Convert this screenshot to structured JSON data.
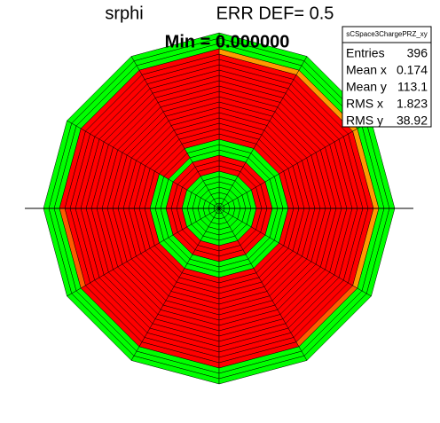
{
  "chart_data": {
    "type": "polar_heatmap",
    "title": "srphi",
    "subtitle": "ERR DEF= 0.5",
    "annotation": "Min = 0.000000",
    "palette": [
      "#00ff00",
      "#ff0000",
      "#ff9900",
      "#ff5a00"
    ],
    "values": [
      [
        0,
        0,
        0,
        0,
        0,
        0,
        0,
        1,
        1,
        1,
        0,
        0,
        0,
        1,
        1,
        1,
        1,
        1,
        1,
        1,
        1,
        1,
        1,
        1,
        1,
        1,
        1,
        1,
        1,
        2,
        0,
        0,
        0
      ],
      [
        0,
        0,
        0,
        0,
        0,
        0,
        0,
        1,
        1,
        1,
        0,
        0,
        0,
        1,
        1,
        1,
        1,
        1,
        1,
        1,
        1,
        1,
        1,
        1,
        1,
        1,
        1,
        1,
        1,
        2,
        0,
        0,
        0
      ],
      [
        0,
        0,
        0,
        0,
        0,
        0,
        0,
        1,
        1,
        1,
        0,
        0,
        0,
        1,
        1,
        1,
        1,
        1,
        1,
        1,
        1,
        1,
        1,
        1,
        1,
        1,
        1,
        1,
        1,
        2,
        0,
        0,
        0
      ],
      [
        0,
        0,
        0,
        0,
        0,
        0,
        0,
        1,
        1,
        1,
        0,
        0,
        0,
        1,
        1,
        1,
        1,
        1,
        1,
        1,
        1,
        1,
        1,
        1,
        1,
        1,
        1,
        1,
        1,
        1,
        0,
        0,
        0
      ],
      [
        0,
        0,
        0,
        0,
        0,
        0,
        0,
        1,
        1,
        1,
        0,
        1,
        1,
        1,
        1,
        1,
        1,
        1,
        1,
        1,
        1,
        1,
        1,
        1,
        1,
        1,
        1,
        1,
        1,
        1,
        0,
        0,
        0
      ],
      [
        0,
        0,
        0,
        0,
        0,
        0,
        0,
        1,
        1,
        1,
        0,
        0,
        0,
        1,
        1,
        1,
        1,
        1,
        1,
        1,
        1,
        1,
        1,
        1,
        1,
        1,
        1,
        1,
        1,
        1,
        0,
        0,
        0
      ],
      [
        0,
        0,
        0,
        0,
        0,
        0,
        0,
        1,
        1,
        1,
        0,
        0,
        0,
        1,
        1,
        1,
        1,
        1,
        1,
        1,
        1,
        1,
        1,
        1,
        1,
        1,
        1,
        1,
        1,
        3,
        0,
        0,
        0
      ],
      [
        0,
        0,
        0,
        0,
        0,
        0,
        0,
        1,
        1,
        1,
        0,
        0,
        0,
        1,
        1,
        1,
        1,
        1,
        1,
        1,
        1,
        1,
        1,
        1,
        1,
        1,
        1,
        1,
        1,
        1,
        0,
        0,
        0
      ],
      [
        0,
        0,
        0,
        0,
        0,
        0,
        0,
        1,
        1,
        1,
        0,
        0,
        0,
        1,
        1,
        1,
        1,
        1,
        1,
        1,
        1,
        1,
        1,
        1,
        1,
        1,
        1,
        1,
        1,
        1,
        0,
        0,
        0
      ],
      [
        0,
        0,
        0,
        0,
        0,
        0,
        0,
        1,
        1,
        1,
        0,
        0,
        0,
        1,
        1,
        1,
        1,
        1,
        1,
        1,
        1,
        1,
        1,
        1,
        1,
        1,
        1,
        1,
        1,
        1,
        0,
        0,
        0
      ],
      [
        0,
        0,
        0,
        0,
        0,
        0,
        0,
        1,
        1,
        1,
        0,
        0,
        0,
        1,
        1,
        1,
        1,
        1,
        1,
        1,
        1,
        1,
        1,
        1,
        1,
        1,
        1,
        1,
        1,
        3,
        0,
        0,
        0
      ],
      [
        0,
        0,
        0,
        0,
        0,
        0,
        0,
        1,
        1,
        1,
        0,
        0,
        0,
        1,
        1,
        1,
        1,
        1,
        1,
        1,
        1,
        1,
        1,
        1,
        1,
        1,
        1,
        1,
        1,
        2,
        0,
        0,
        0
      ]
    ],
    "stats": {
      "title": "sCSpace3ChargePRZ_xy",
      "rows": [
        [
          "Entries",
          396
        ],
        [
          "Mean x",
          0.174
        ],
        [
          "Mean y",
          113.1
        ],
        [
          "RMS x",
          1.823
        ],
        [
          "RMS y",
          38.92
        ]
      ]
    }
  }
}
